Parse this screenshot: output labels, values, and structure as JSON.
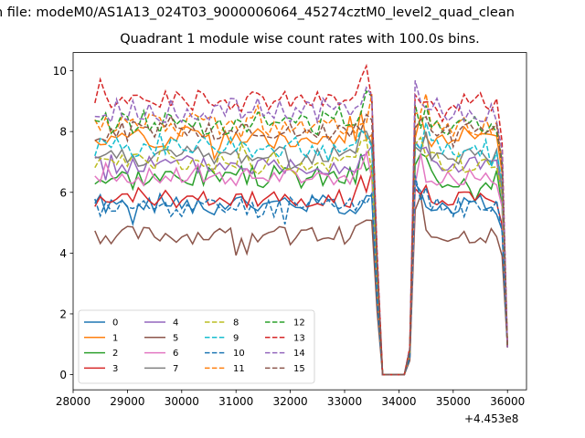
{
  "figure": {
    "suptitle": "n file: modeM0/AS1A13_024T03_9000006064_45274cztM0_level2_quad_clean",
    "offset_text": "+4.453e8"
  },
  "chart_data": {
    "type": "line",
    "title": "Quadrant 1 module wise count rates with 100.0s bins.",
    "xlabel": "",
    "ylabel": "",
    "x_offset": 445300000,
    "xlim": [
      28000,
      36350
    ],
    "ylim": [
      -0.5,
      10.6
    ],
    "xticks": [
      28000,
      29000,
      30000,
      31000,
      32000,
      33000,
      34000,
      35000,
      36000
    ],
    "yticks": [
      0,
      2,
      4,
      6,
      8,
      10
    ],
    "x_start": 28400,
    "x_step": 100,
    "grid": false,
    "legend": {
      "placement": "lower-left",
      "columns": 4
    },
    "series": [
      {
        "name": "0",
        "color": "#1f77b4",
        "dash": "solid",
        "level": 5.6,
        "amp": 0.35,
        "seed": 1
      },
      {
        "name": "1",
        "color": "#ff7f0e",
        "dash": "solid",
        "level": 7.8,
        "amp": 0.35,
        "seed": 2
      },
      {
        "name": "2",
        "color": "#2ca02c",
        "dash": "solid",
        "level": 6.5,
        "amp": 0.4,
        "seed": 3
      },
      {
        "name": "3",
        "color": "#d62728",
        "dash": "solid",
        "level": 5.8,
        "amp": 0.3,
        "seed": 4
      },
      {
        "name": "4",
        "color": "#9467bd",
        "dash": "solid",
        "level": 6.9,
        "amp": 0.35,
        "seed": 5
      },
      {
        "name": "5",
        "color": "#8c564b",
        "dash": "solid",
        "level": 4.6,
        "amp": 0.3,
        "seed": 6
      },
      {
        "name": "6",
        "color": "#e377c2",
        "dash": "solid",
        "level": 6.5,
        "amp": 0.3,
        "seed": 7
      },
      {
        "name": "7",
        "color": "#7f7f7f",
        "dash": "solid",
        "level": 7.2,
        "amp": 0.35,
        "seed": 8
      },
      {
        "name": "8",
        "color": "#bcbd22",
        "dash": "dashed",
        "level": 7.0,
        "amp": 0.35,
        "seed": 9
      },
      {
        "name": "9",
        "color": "#17becf",
        "dash": "dashed",
        "level": 7.5,
        "amp": 0.35,
        "seed": 10
      },
      {
        "name": "10",
        "color": "#1f77b4",
        "dash": "dashed",
        "level": 5.5,
        "amp": 0.35,
        "seed": 11
      },
      {
        "name": "11",
        "color": "#ff7f0e",
        "dash": "dashed",
        "level": 8.2,
        "amp": 0.4,
        "seed": 12
      },
      {
        "name": "12",
        "color": "#2ca02c",
        "dash": "dashed",
        "level": 8.3,
        "amp": 0.4,
        "seed": 13
      },
      {
        "name": "13",
        "color": "#d62728",
        "dash": "dashed",
        "level": 9.0,
        "amp": 0.35,
        "seed": 14
      },
      {
        "name": "14",
        "color": "#9467bd",
        "dash": "dashed",
        "level": 8.7,
        "amp": 0.4,
        "seed": 15
      },
      {
        "name": "15",
        "color": "#8c564b",
        "dash": "dashed",
        "level": 8.0,
        "amp": 0.35,
        "seed": 16
      }
    ]
  }
}
